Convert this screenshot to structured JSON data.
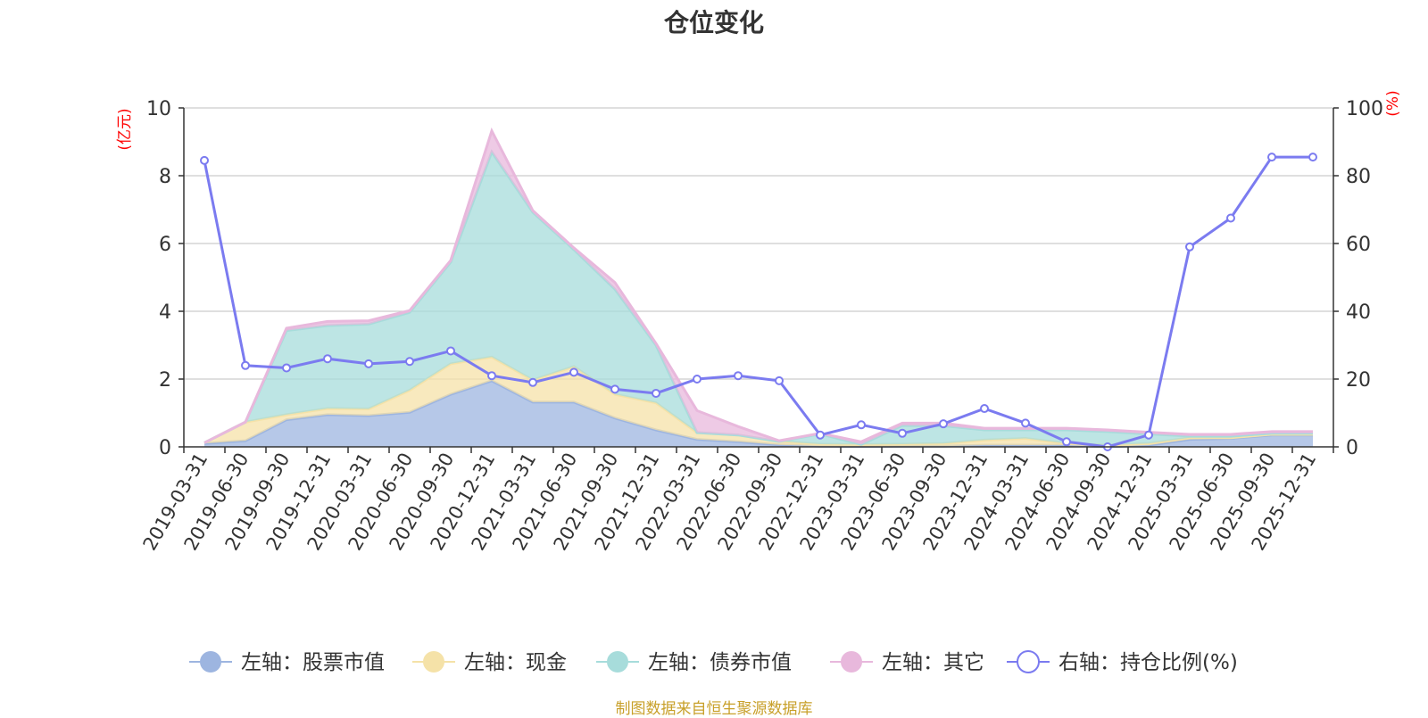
{
  "chart_data": {
    "type": "area",
    "title": "仓位变化",
    "left_axis": {
      "label": "(亿元)",
      "min": 0,
      "max": 10,
      "ticks": [
        "0",
        "2",
        "4",
        "6",
        "8",
        "10"
      ]
    },
    "right_axis": {
      "label": "(%)",
      "min": 0,
      "max": 100,
      "ticks": [
        "0",
        "20",
        "40",
        "60",
        "80",
        "100"
      ]
    },
    "categories": [
      "2019-03-31",
      "2019-06-30",
      "2019-09-30",
      "2019-12-31",
      "2020-03-31",
      "2020-06-30",
      "2020-09-30",
      "2020-12-31",
      "2021-03-31",
      "2021-06-30",
      "2021-09-30",
      "2021-12-31",
      "2022-03-31",
      "2022-06-30",
      "2022-09-30",
      "2022-12-31",
      "2023-03-31",
      "2023-06-30",
      "2023-09-30",
      "2023-12-31",
      "2024-03-31",
      "2024-06-30",
      "2024-09-30",
      "2024-12-31",
      "2025-03-31",
      "2025-06-30",
      "2025-09-30",
      "2025-12-31"
    ],
    "series": [
      {
        "name": "左轴：股票市值",
        "axis": "left",
        "stack": true,
        "color": "#9db5e0",
        "values": [
          0.1,
          0.18,
          0.8,
          0.95,
          0.92,
          1.02,
          1.55,
          1.95,
          1.32,
          1.32,
          0.85,
          0.5,
          0.22,
          0.15,
          0.06,
          0.02,
          0.01,
          0.02,
          0.02,
          0.05,
          0.05,
          0.05,
          0.0,
          0.05,
          0.22,
          0.25,
          0.35,
          0.35
        ]
      },
      {
        "name": "左轴：现金",
        "axis": "left",
        "stack": true,
        "color": "#f5e2a8",
        "values": [
          0.02,
          0.55,
          0.15,
          0.18,
          0.2,
          0.65,
          0.9,
          0.7,
          0.65,
          1.05,
          0.7,
          0.8,
          0.2,
          0.2,
          0.1,
          0.06,
          0.06,
          0.06,
          0.08,
          0.15,
          0.2,
          0.05,
          0.05,
          0.05,
          0.05,
          0.02,
          0.02,
          0.02
        ]
      },
      {
        "name": "左轴：债券市值",
        "axis": "left",
        "stack": true,
        "color": "#a7dcdb",
        "values": [
          0.0,
          0.0,
          2.48,
          2.45,
          2.5,
          2.3,
          3.0,
          6.05,
          4.95,
          3.45,
          3.1,
          1.7,
          0.0,
          0.0,
          0.0,
          0.3,
          0.0,
          0.55,
          0.52,
          0.3,
          0.25,
          0.4,
          0.4,
          0.28,
          0.05,
          0.05,
          0.03,
          0.03
        ]
      },
      {
        "name": "左轴：其它",
        "axis": "left",
        "stack": true,
        "color": "#e8b8dc",
        "values": [
          0.0,
          0.0,
          0.07,
          0.12,
          0.1,
          0.05,
          0.05,
          0.62,
          0.05,
          0.05,
          0.2,
          0.05,
          0.65,
          0.25,
          0.02,
          0.02,
          0.08,
          0.07,
          0.08,
          0.05,
          0.05,
          0.05,
          0.05,
          0.05,
          0.05,
          0.05,
          0.05,
          0.05
        ]
      },
      {
        "name": "右轴：持仓比例(%)",
        "axis": "right",
        "type": "line",
        "color": "#7b7bf0",
        "values": [
          84.5,
          24.0,
          23.3,
          26.0,
          24.5,
          25.2,
          28.3,
          21.0,
          19.0,
          22.0,
          17.0,
          15.8,
          20.0,
          21.0,
          19.5,
          3.5,
          6.5,
          4.0,
          6.8,
          11.3,
          7.0,
          1.5,
          0.0,
          3.5,
          59.0,
          67.5,
          85.5,
          85.5
        ]
      }
    ],
    "legend_position": "bottom",
    "grid": true
  },
  "footer": {
    "source": "制图数据来自恒生聚源数据库"
  }
}
